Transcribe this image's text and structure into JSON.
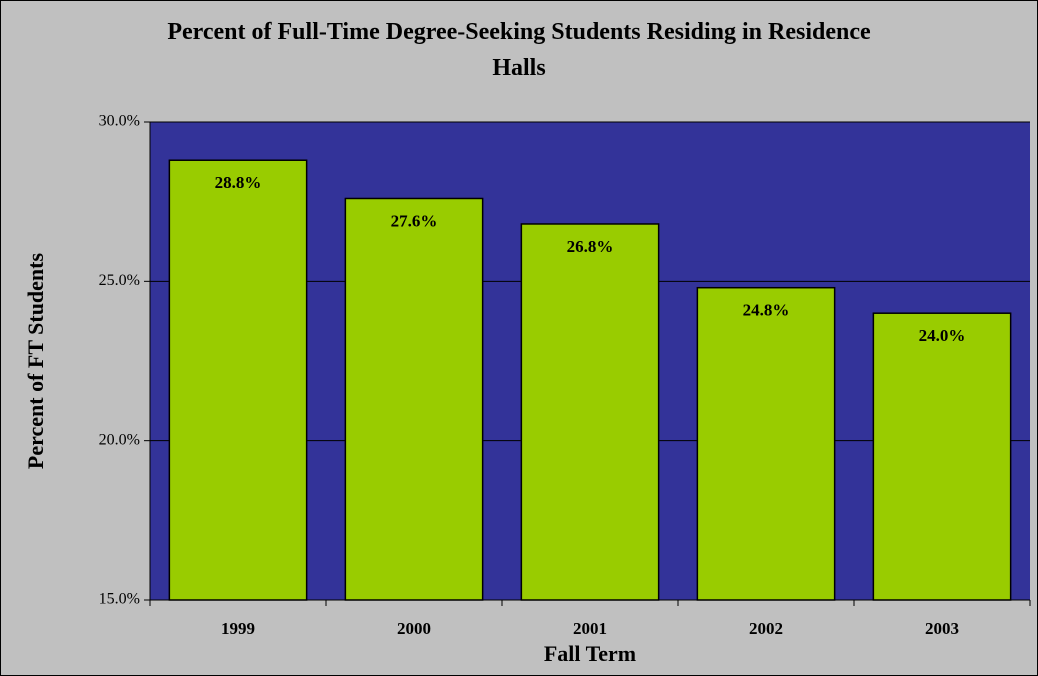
{
  "chart_data": {
    "type": "bar",
    "title": "Percent of Full-Time Degree-Seeking Students Residing in Residence Halls",
    "x_label": "Fall Term",
    "y_label": "Percent of FT Students",
    "categories": [
      "1999",
      "2000",
      "2001",
      "2002",
      "2003"
    ],
    "values": [
      28.8,
      27.6,
      26.8,
      24.8,
      24.0
    ],
    "value_labels": [
      "28.8%",
      "27.6%",
      "26.8%",
      "24.8%",
      "24.0%"
    ],
    "color": "#99cc00",
    "ylim": [
      15,
      30
    ],
    "yticks": [
      {
        "value": 15,
        "label": "15.0%"
      },
      {
        "value": 20,
        "label": "20.0%"
      },
      {
        "value": 25,
        "label": "25.0%"
      },
      {
        "value": 30,
        "label": "30.0%"
      }
    ],
    "grid": true
  }
}
